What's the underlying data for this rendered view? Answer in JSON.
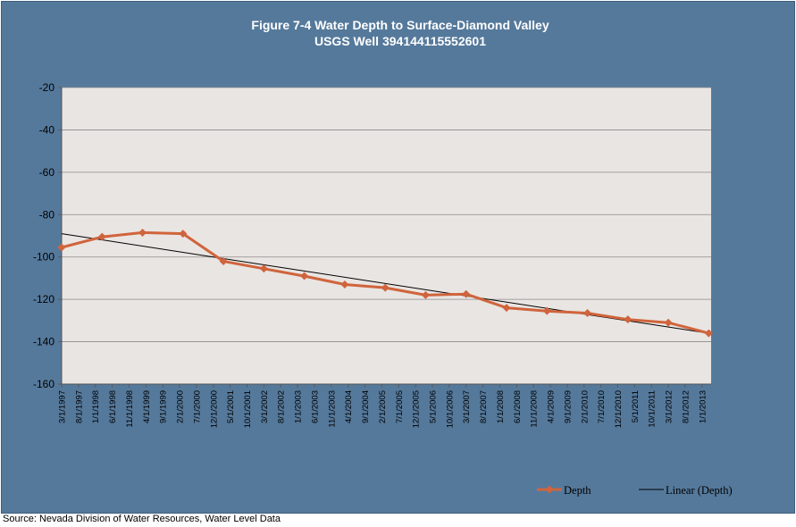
{
  "chart_data": {
    "type": "line",
    "title": "Figure 7-4 Water Depth to Surface-Diamond Valley",
    "subtitle": "USGS Well 394144115552601",
    "xlabel": "",
    "ylabel": "",
    "ylim": [
      -160,
      -20
    ],
    "yticks": [
      -20,
      -40,
      -60,
      -80,
      -100,
      -120,
      -140,
      -160
    ],
    "x_tick_labels": [
      "3/1/1997",
      "8/1/1997",
      "1/1/1998",
      "6/1/1998",
      "11/1/1998",
      "4/1/1999",
      "9/1/1999",
      "2/1/2000",
      "7/1/2000",
      "12/1/2000",
      "5/1/2001",
      "10/1/2001",
      "3/1/2002",
      "8/1/2002",
      "1/1/2003",
      "6/1/2003",
      "11/1/2003",
      "4/1/2004",
      "9/1/2004",
      "2/1/2005",
      "7/1/2005",
      "12/1/2005",
      "5/1/2006",
      "10/1/2006",
      "3/1/2007",
      "8/1/2007",
      "1/1/2008",
      "6/1/2008",
      "11/1/2008",
      "4/1/2009",
      "9/1/2009",
      "2/1/2010",
      "7/1/2010",
      "12/1/2010",
      "5/1/2011",
      "10/1/2011",
      "3/1/2012",
      "8/1/2012",
      "1/1/2013"
    ],
    "grid": true,
    "legend_position": "bottom-right",
    "series": [
      {
        "name": "Depth",
        "color": "#d0643c",
        "marker": "diamond",
        "x": [
          "3/1/1997",
          "3/1/1998",
          "3/1/1999",
          "3/1/2000",
          "3/1/2001",
          "3/1/2002",
          "3/1/2003",
          "3/1/2004",
          "3/1/2005",
          "3/1/2006",
          "3/1/2007",
          "3/1/2008",
          "3/1/2009",
          "3/1/2010",
          "3/1/2011",
          "3/1/2012",
          "3/1/2013"
        ],
        "values": [
          -95.5,
          -90.5,
          -88.5,
          -89,
          -102,
          -105.5,
          -109,
          -113,
          -114.5,
          -118,
          -117.5,
          -124,
          -125.5,
          -126.5,
          -129.5,
          -131,
          -136
        ]
      },
      {
        "name": "Linear (Depth)",
        "color": "#000000",
        "x": [
          "3/1/1997",
          "3/1/2013"
        ],
        "values": [
          -89,
          -136
        ]
      }
    ]
  },
  "source_note": "Source: Nevada Division of Water Resources, Water Level Data"
}
